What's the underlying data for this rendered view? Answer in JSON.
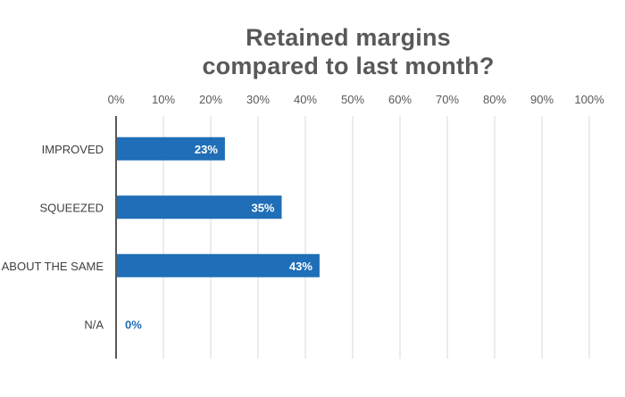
{
  "chart_data": {
    "type": "bar",
    "orientation": "horizontal",
    "title_lines": [
      "Retained margins",
      "compared to last month?"
    ],
    "categories": [
      "IMPROVED",
      "SQUEEZED",
      "ABOUT THE SAME",
      "N/A"
    ],
    "values": [
      23,
      35,
      43,
      0
    ],
    "data_labels": [
      "23%",
      "35%",
      "43%",
      "0%"
    ],
    "x_ticks": [
      "0%",
      "10%",
      "20%",
      "30%",
      "40%",
      "50%",
      "60%",
      "70%",
      "80%",
      "90%",
      "100%"
    ],
    "xlim": [
      0,
      100
    ],
    "grid": true,
    "xlabel": "",
    "ylabel": "",
    "bar_color": "#1f6eb7",
    "axis_color": "#595959",
    "grid_color": "#d9d9d9"
  }
}
